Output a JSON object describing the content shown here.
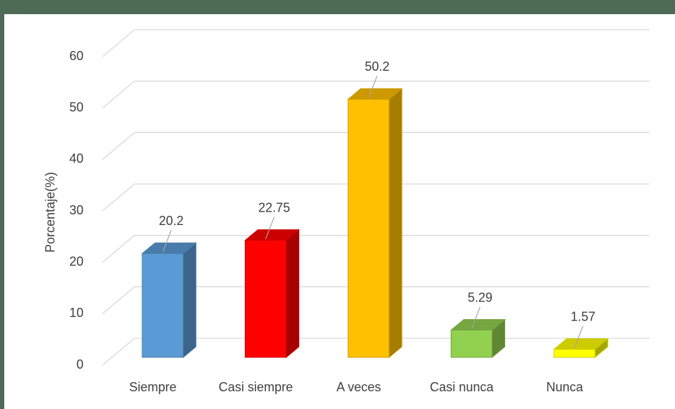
{
  "chart_data": {
    "type": "bar3d",
    "y_label": "Porcentaje(%)",
    "categories": [
      "Siempre",
      "Casi siempre",
      "A veces",
      "Casi nunca",
      "Nunca"
    ],
    "values": [
      20.2,
      22.75,
      50.2,
      5.29,
      1.57
    ],
    "colors": [
      "#5b9bd5",
      "#ff0000",
      "#ffc000",
      "#92d050",
      "#ffff00"
    ],
    "ylim": [
      0,
      60
    ],
    "yticks": [
      0,
      10,
      20,
      30,
      40,
      50,
      60
    ],
    "grid": true
  }
}
